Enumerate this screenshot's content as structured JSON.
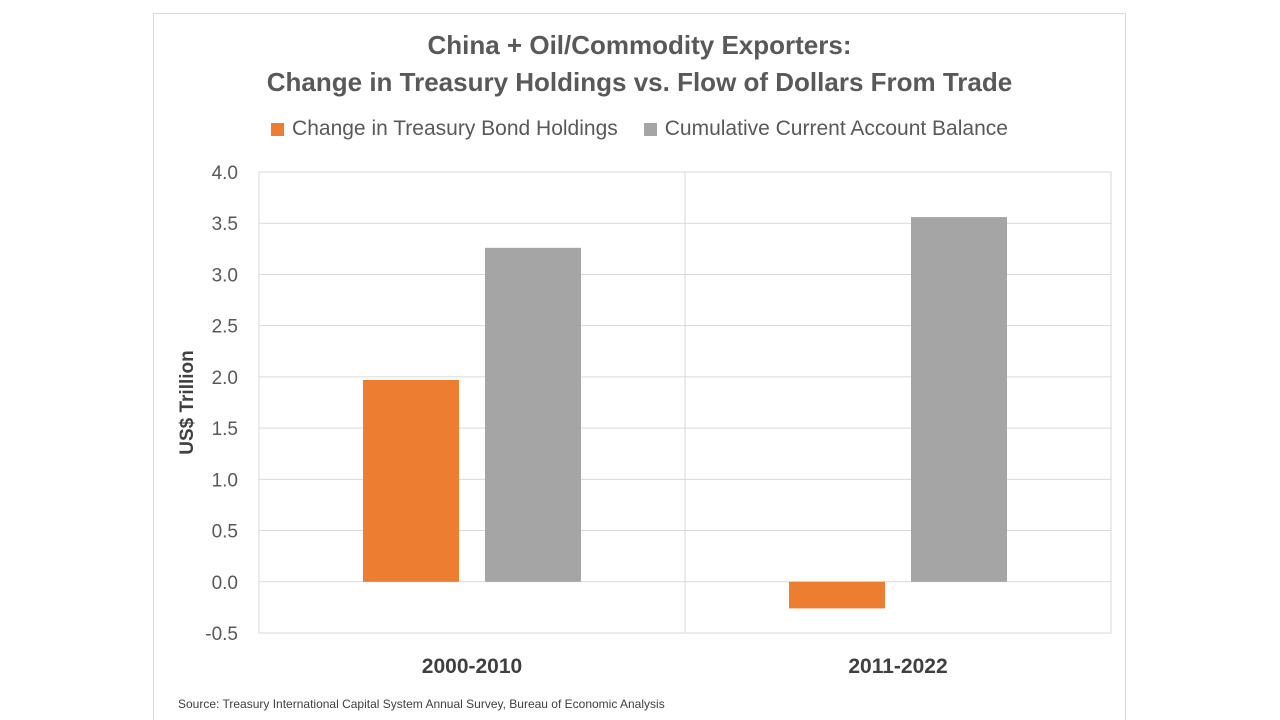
{
  "chart_data": {
    "type": "bar",
    "title_line1": "China + Oil/Commodity Exporters:",
    "title_line2": "Change in Treasury Holdings vs. Flow of Dollars From Trade",
    "xlabel": "",
    "ylabel": "US$ Trillion",
    "categories": [
      "2000-2010",
      "2011-2022"
    ],
    "series": [
      {
        "name": "Change in Treasury Bond Holdings",
        "color": "#ed7d31",
        "values": [
          1.97,
          -0.26
        ]
      },
      {
        "name": "Cumulative Current Account Balance",
        "color": "#a5a5a5",
        "values": [
          3.26,
          3.56
        ]
      }
    ],
    "ylim": [
      -0.5,
      4.0
    ],
    "yticks": [
      "4.0",
      "3.5",
      "3.0",
      "2.5",
      "2.0",
      "1.5",
      "1.0",
      "0.5",
      "0.0",
      "-0.5"
    ],
    "grid": true,
    "legend_position": "top",
    "source": "Source: Treasury International Capital System Annual Survey, Bureau of Economic Analysis"
  }
}
